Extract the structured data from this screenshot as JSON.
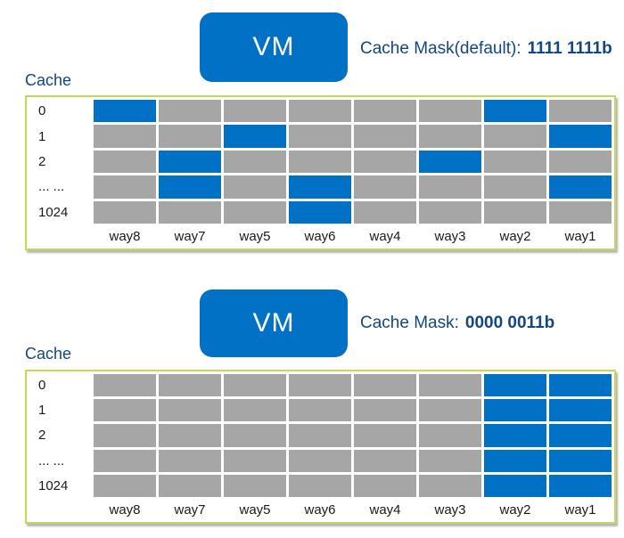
{
  "colors": {
    "allocated": "#0071c5",
    "unallocated": "#a6a6a6",
    "vm_box": "#0071c5",
    "heading_text": "#12477f",
    "grid_border": "#c6d855"
  },
  "panels": [
    {
      "vm_label": "VM",
      "mask_label": "Cache Mask(default):",
      "mask_value": "1111 1111b",
      "cache_label": "Cache",
      "rows": [
        "0",
        "1",
        "2",
        "... ...",
        "1024"
      ],
      "ways": [
        "way8",
        "way7",
        "way5",
        "way6",
        "way4",
        "way3",
        "way2",
        "way1"
      ],
      "allocated_cells": [
        [
          0,
          0
        ],
        [
          0,
          6
        ],
        [
          1,
          2
        ],
        [
          1,
          7
        ],
        [
          2,
          1
        ],
        [
          2,
          5
        ],
        [
          3,
          1
        ],
        [
          3,
          3
        ],
        [
          3,
          7
        ],
        [
          4,
          3
        ]
      ]
    },
    {
      "vm_label": "VM",
      "mask_label": "Cache Mask:",
      "mask_value": "0000 0011b",
      "cache_label": "Cache",
      "rows": [
        "0",
        "1",
        "2",
        "... ...",
        "1024"
      ],
      "ways": [
        "way8",
        "way7",
        "way5",
        "way6",
        "way4",
        "way3",
        "way2",
        "way1"
      ],
      "allocated_cells": [
        [
          0,
          6
        ],
        [
          0,
          7
        ],
        [
          1,
          6
        ],
        [
          1,
          7
        ],
        [
          2,
          6
        ],
        [
          2,
          7
        ],
        [
          3,
          6
        ],
        [
          3,
          7
        ],
        [
          4,
          6
        ],
        [
          4,
          7
        ]
      ]
    }
  ]
}
